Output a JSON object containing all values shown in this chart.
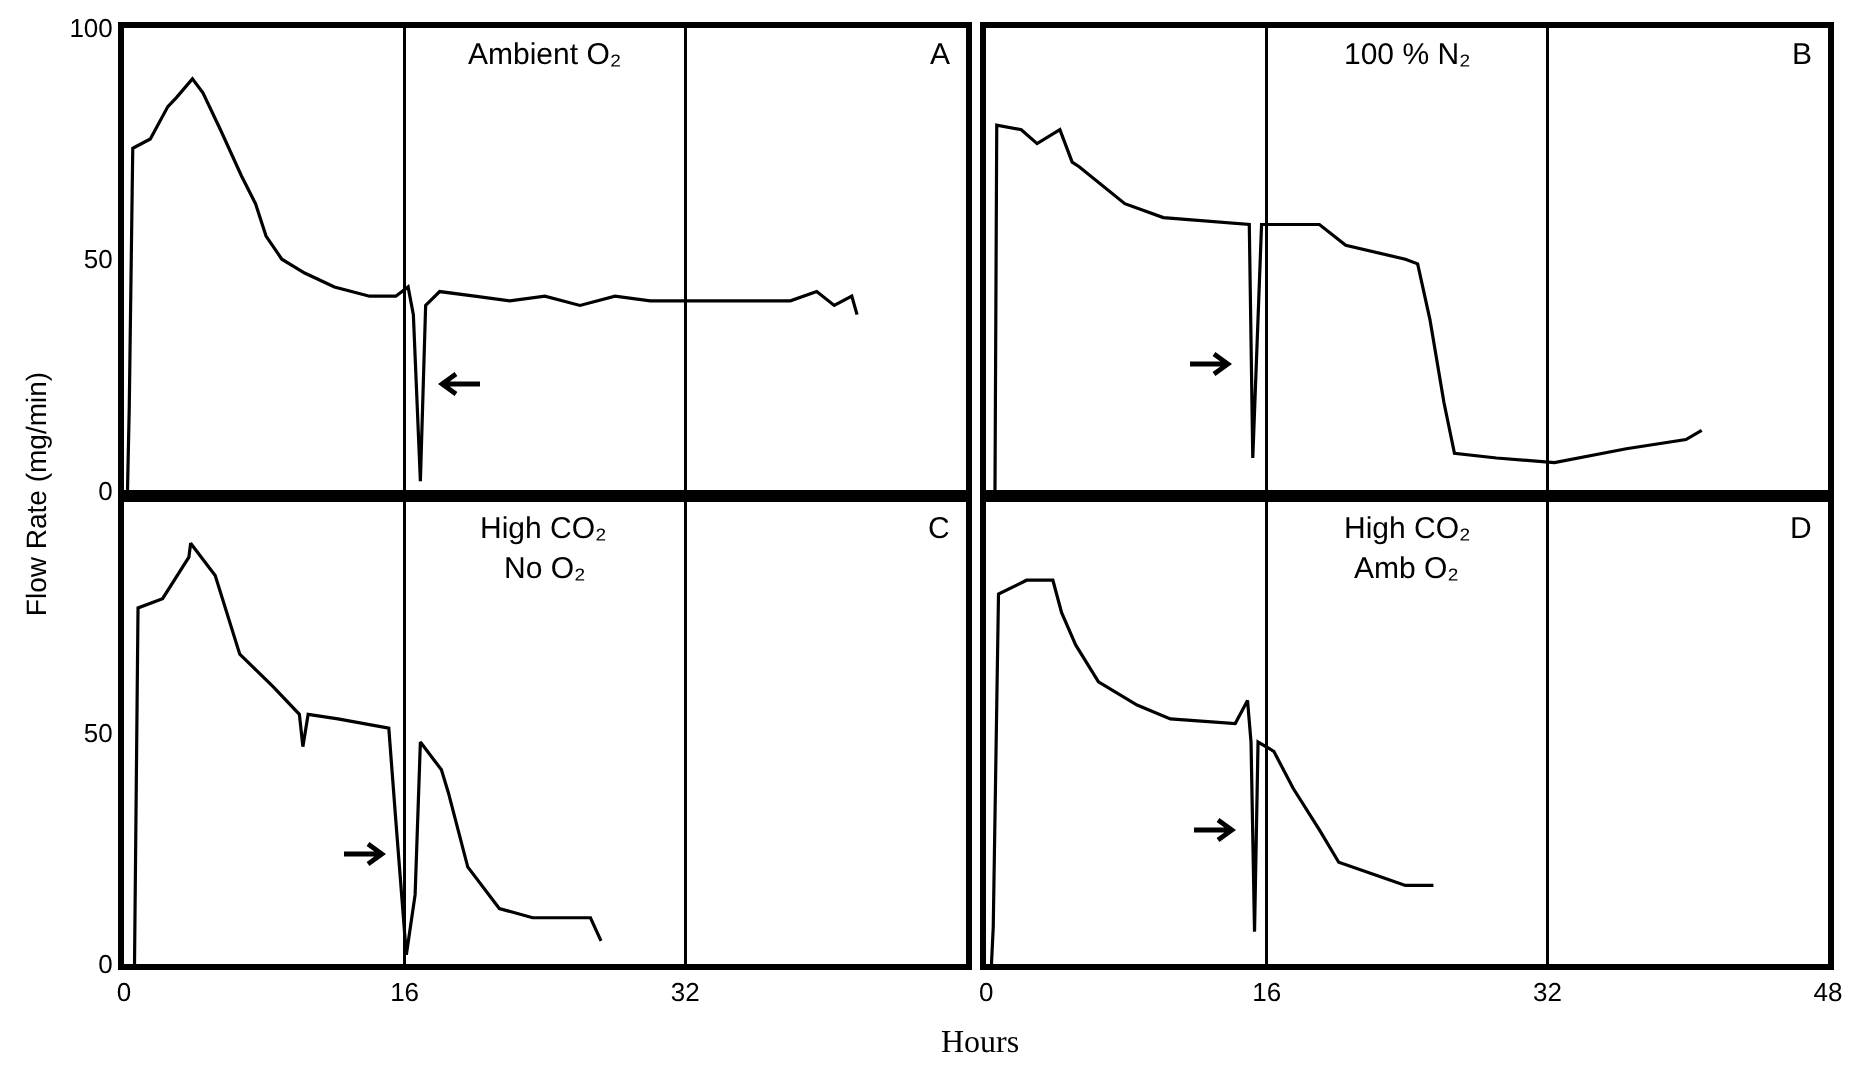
{
  "chart_data": [
    {
      "type": "line",
      "ylabel": "Flow Rate (mg/min)",
      "annotations": [
        "Ambient O₂",
        "A"
      ],
      "color": "#000000",
      "xlim": [
        0,
        48
      ],
      "ylim": [
        0,
        100
      ],
      "xticks": [
        0,
        16,
        32,
        48
      ],
      "yticks": [
        0,
        50,
        100
      ],
      "grid": "x",
      "tick_labels": "y",
      "x": [
        0.2,
        0.3,
        0.5,
        1.5,
        2.5,
        3.0,
        3.9,
        4.5,
        5.5,
        6.7,
        7.5,
        8.1,
        9,
        10.3,
        12,
        14,
        15.5,
        16.2,
        16.5,
        16.9,
        17.2,
        18,
        20,
        22,
        24,
        26,
        28,
        30,
        32,
        34,
        36,
        38,
        39.5,
        40.5,
        41.5,
        41.8
      ],
      "values": [
        0,
        18,
        74,
        76,
        83,
        85,
        89,
        86,
        78,
        68,
        62,
        55,
        50,
        47,
        44,
        42,
        42,
        44,
        38,
        2,
        40,
        43,
        42,
        41,
        42,
        40,
        42,
        41,
        41,
        41,
        41,
        41,
        43,
        40,
        42,
        38
      ]
    },
    {
      "type": "line",
      "annotations": [
        "100 % N₂",
        "B"
      ],
      "color": "#000000",
      "xlim": [
        0,
        48
      ],
      "ylim": [
        0,
        100
      ],
      "xticks": [
        0,
        16,
        32,
        48
      ],
      "yticks": [
        0,
        50,
        100
      ],
      "grid": "x",
      "tick_labels": false,
      "x": [
        0.5,
        0.6,
        2.0,
        2.9,
        4.2,
        4.9,
        5.3,
        7.9,
        10.1,
        15.0,
        15.2,
        15.7,
        19.0,
        20.5,
        23.9,
        24.6,
        25.3,
        26.1,
        26.7,
        29.1,
        32.4,
        36.5,
        39.9,
        40.8
      ],
      "values": [
        0,
        79,
        78,
        75,
        78,
        71,
        70,
        62,
        59,
        57.5,
        7,
        57.5,
        57.5,
        53,
        50,
        49,
        37,
        19,
        8,
        7,
        6,
        9,
        11,
        13
      ]
    },
    {
      "type": "line",
      "xlabel": "Hours",
      "annotations": [
        "High CO₂",
        "No O₂",
        "C"
      ],
      "color": "#000000",
      "xlim": [
        0,
        48
      ],
      "ylim": [
        0,
        100
      ],
      "xticks": [
        0,
        16,
        32
      ],
      "yticks": [
        0,
        50
      ],
      "grid": "x",
      "x": [
        0.6,
        0.8,
        2.2,
        3.7,
        3.8,
        5.2,
        6.6,
        8.5,
        10.0,
        10.2,
        10.5,
        12.2,
        15.1,
        15.5,
        16.1,
        16.6,
        16.9,
        18.1,
        18.5,
        19.6,
        21.4,
        23.3,
        25.1,
        26.6,
        27.2
      ],
      "values": [
        0,
        77,
        79,
        88,
        91,
        84,
        67,
        60,
        54,
        47,
        54,
        53,
        51,
        31,
        2,
        15,
        48,
        42,
        37,
        21,
        12,
        10,
        10,
        10,
        5
      ]
    },
    {
      "type": "line",
      "annotations": [
        "High CO₂",
        "Amb O₂",
        "D"
      ],
      "color": "#000000",
      "xlim": [
        0,
        48
      ],
      "ylim": [
        0,
        100
      ],
      "xticks": [
        0,
        16,
        32,
        48
      ],
      "yticks": [
        0,
        50
      ],
      "grid": "x",
      "tick_labels": "x",
      "x": [
        0.3,
        0.4,
        0.7,
        2.3,
        3.8,
        4.3,
        5.1,
        6.4,
        8.6,
        10.5,
        14.2,
        14.9,
        15.1,
        15.3,
        15.5,
        16.4,
        17.5,
        19.0,
        20.1,
        22.4,
        23.9,
        25.5
      ],
      "values": [
        0,
        8,
        80,
        83,
        83,
        76,
        69,
        61,
        56,
        53,
        52,
        57,
        48,
        7,
        48,
        46,
        38,
        29,
        22,
        19,
        17,
        17
      ]
    }
  ]
}
